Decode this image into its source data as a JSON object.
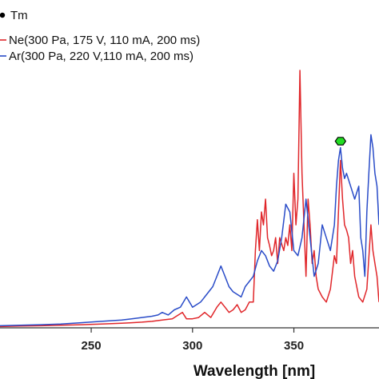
{
  "chart_data": {
    "type": "line",
    "title": "",
    "xlabel": "Wavelength [nm]",
    "ylabel": "",
    "xlim": [
      205,
      392
    ],
    "ylim": [
      0,
      100
    ],
    "x_ticks": [
      250,
      300,
      350
    ],
    "grid": false,
    "legend_position": "top-left",
    "legend": [
      {
        "label": "Tm",
        "marker": "dot",
        "color": "#000000"
      },
      {
        "label": "Ne(300 Pa, 175 V, 110 mA, 200 ms)",
        "color": "#e0262a"
      },
      {
        "label": "Ar(300 Pa, 220 V,110 mA, 200 ms)",
        "color": "#2a4cc8"
      }
    ],
    "marker": {
      "x": 373,
      "y": 72.5,
      "shape": "hexagon",
      "color": "#22dd22"
    },
    "series": [
      {
        "name": "Ne(300 Pa, 175 V, 110 mA, 200 ms)",
        "color": "#e0262a",
        "x": [
          205,
          215,
          225,
          235,
          245,
          255,
          265,
          270,
          275,
          280,
          285,
          290,
          293,
          295,
          297,
          300,
          303,
          306,
          309,
          312,
          314,
          316,
          318,
          320,
          322,
          324,
          326,
          328,
          330,
          331,
          332,
          333,
          334,
          335,
          336,
          337,
          338,
          339,
          340,
          341,
          342,
          343,
          345,
          346,
          347,
          348,
          349,
          350,
          351,
          352,
          353,
          354,
          355,
          356,
          357,
          358,
          359,
          360,
          361,
          362,
          364,
          366,
          368,
          370,
          371,
          372,
          373,
          374,
          375,
          376,
          377,
          378,
          379,
          380,
          382,
          384,
          386,
          388,
          389,
          390,
          391,
          392
        ],
        "y": [
          0.5,
          0.7,
          0.8,
          1.0,
          1.2,
          1.5,
          1.8,
          2.0,
          2.2,
          2.5,
          3.0,
          3.5,
          5.0,
          6.0,
          3.5,
          3.5,
          4.0,
          6.0,
          4.0,
          8.0,
          10.0,
          8.0,
          6.0,
          7.0,
          9.0,
          6.0,
          7.0,
          10.0,
          10.0,
          30.0,
          42.0,
          30.0,
          45.0,
          40.0,
          50.0,
          35.0,
          32.0,
          28.0,
          30.0,
          35.0,
          25.0,
          35.0,
          30.0,
          35.0,
          32.0,
          40.0,
          30.0,
          60.0,
          40.0,
          50.0,
          100.0,
          60.0,
          40.0,
          20.0,
          50.0,
          40.0,
          25.0,
          30.0,
          20.0,
          15.0,
          12.0,
          10.0,
          15.0,
          28.0,
          25.0,
          45.0,
          65.0,
          50.0,
          40.0,
          38.0,
          35.0,
          25.0,
          30.0,
          20.0,
          12.0,
          10.0,
          15.0,
          40.0,
          30.0,
          25.0,
          20.0,
          10.0
        ]
      },
      {
        "name": "Ar(300 Pa, 220 V,110 mA, 200 ms)",
        "color": "#2a4cc8",
        "x": [
          205,
          215,
          225,
          235,
          245,
          255,
          265,
          270,
          275,
          280,
          283,
          285,
          288,
          291,
          294,
          297,
          300,
          302,
          304,
          306,
          308,
          310,
          312,
          314,
          316,
          318,
          320,
          322,
          324,
          326,
          328,
          330,
          332,
          334,
          336,
          338,
          340,
          342,
          344,
          346,
          348,
          350,
          352,
          354,
          356,
          358,
          360,
          362,
          364,
          366,
          368,
          370,
          371,
          372,
          373,
          374,
          375,
          376,
          378,
          380,
          382,
          383,
          384,
          385,
          386,
          387,
          388,
          389,
          390,
          391,
          392
        ],
        "y": [
          0.8,
          1.0,
          1.2,
          1.5,
          2.0,
          2.5,
          3.0,
          3.5,
          4.0,
          4.5,
          5.0,
          6.0,
          5.0,
          7.0,
          8.0,
          12.0,
          8.0,
          9.0,
          10.0,
          12.0,
          14.0,
          16.0,
          20.0,
          24.0,
          20.0,
          16.0,
          14.0,
          13.0,
          12.0,
          16.0,
          18.0,
          20.0,
          26.0,
          30.0,
          28.0,
          24.0,
          22.0,
          26.0,
          35.0,
          48.0,
          45.0,
          30.0,
          28.0,
          35.0,
          50.0,
          35.0,
          20.0,
          25.0,
          40.0,
          35.0,
          30.0,
          40.0,
          55.0,
          65.0,
          70.0,
          62.0,
          58.0,
          60.0,
          55.0,
          50.0,
          55.0,
          35.0,
          30.0,
          20.0,
          45.0,
          60.0,
          75.0,
          70.0,
          60.0,
          55.0,
          40.0
        ]
      }
    ]
  }
}
